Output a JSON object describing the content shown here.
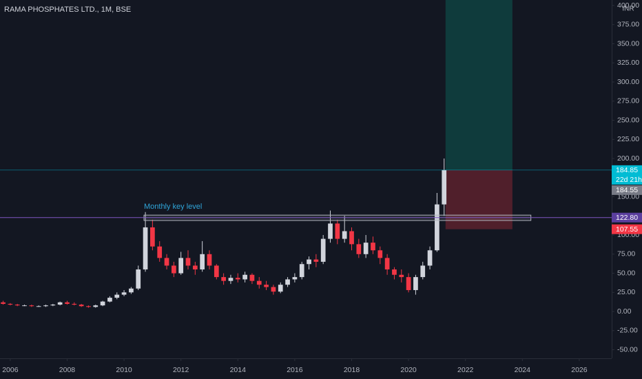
{
  "chart_data": {
    "type": "candlestick",
    "title": "RAMA PHOSPHATES LTD., 1M, BSE",
    "currency": "INR",
    "up_color": "#d1d4dc",
    "down_color": "#f23645",
    "xlim": [
      2005.64,
      2027.14
    ],
    "xticks": [
      2006,
      2008,
      2010,
      2012,
      2014,
      2016,
      2018,
      2020,
      2022,
      2024,
      2026
    ],
    "ylim": [
      -61.2,
      407.2
    ],
    "yticks": [
      {
        "value": -50,
        "label": "-50.00"
      },
      {
        "value": -25,
        "label": "-25.00"
      },
      {
        "value": 0,
        "label": "0.00"
      },
      {
        "value": 25,
        "label": "25.00"
      },
      {
        "value": 50,
        "label": "50.00"
      },
      {
        "value": 75,
        "label": "75.00"
      },
      {
        "value": 100,
        "label": "100.00"
      },
      {
        "value": 150,
        "label": "150.00"
      },
      {
        "value": 200,
        "label": "200.00"
      },
      {
        "value": 225,
        "label": "225.00"
      },
      {
        "value": 250,
        "label": "250.00"
      },
      {
        "value": 275,
        "label": "275.00"
      },
      {
        "value": 300,
        "label": "300.00"
      },
      {
        "value": 325,
        "label": "325.00"
      },
      {
        "value": 350,
        "label": "350.00"
      },
      {
        "value": 375,
        "label": "375.00"
      },
      {
        "value": 400,
        "label": "400.00"
      }
    ],
    "grid": false,
    "x": [
      2005.75,
      2006.0,
      2006.25,
      2006.5,
      2006.75,
      2007.0,
      2007.25,
      2007.5,
      2007.75,
      2008.0,
      2008.25,
      2008.5,
      2008.75,
      2009.0,
      2009.25,
      2009.5,
      2009.75,
      2010.0,
      2010.25,
      2010.5,
      2010.75,
      2011.0,
      2011.25,
      2011.5,
      2011.75,
      2012.0,
      2012.25,
      2012.5,
      2012.75,
      2013.0,
      2013.25,
      2013.5,
      2013.75,
      2014.0,
      2014.25,
      2014.5,
      2014.75,
      2015.0,
      2015.25,
      2015.5,
      2015.75,
      2016.0,
      2016.25,
      2016.5,
      2016.75,
      2017.0,
      2017.25,
      2017.5,
      2017.75,
      2018.0,
      2018.25,
      2018.5,
      2018.75,
      2019.0,
      2019.25,
      2019.5,
      2019.75,
      2020.0,
      2020.25,
      2020.5,
      2020.75,
      2021.0,
      2021.25
    ],
    "open": [
      12,
      10,
      9,
      8,
      8,
      7,
      7,
      8,
      9,
      12,
      10,
      9,
      7,
      6,
      8,
      13,
      18,
      22,
      25,
      30,
      55,
      110,
      85,
      70,
      60,
      50,
      70,
      60,
      55,
      75,
      60,
      45,
      40,
      44,
      42,
      48,
      40,
      35,
      32,
      26,
      35,
      42,
      45,
      62,
      68,
      65,
      95,
      115,
      95,
      105,
      88,
      75,
      90,
      80,
      70,
      55,
      48,
      45,
      28,
      45,
      60,
      80,
      140
    ],
    "high": [
      14,
      11,
      10,
      9,
      9,
      8,
      9,
      10,
      13,
      14,
      12,
      10,
      8,
      9,
      14,
      20,
      25,
      28,
      32,
      60,
      130,
      120,
      92,
      75,
      65,
      78,
      80,
      65,
      92,
      80,
      62,
      50,
      48,
      50,
      52,
      50,
      45,
      40,
      35,
      38,
      45,
      50,
      65,
      72,
      75,
      100,
      132,
      120,
      125,
      110,
      95,
      100,
      98,
      85,
      75,
      58,
      55,
      50,
      48,
      65,
      85,
      155,
      200
    ],
    "low": [
      9,
      8,
      7,
      7,
      6,
      6,
      6,
      7,
      8,
      9,
      8,
      6,
      5,
      5,
      7,
      12,
      16,
      20,
      23,
      28,
      52,
      80,
      65,
      55,
      45,
      48,
      55,
      48,
      52,
      55,
      42,
      35,
      36,
      38,
      38,
      36,
      30,
      28,
      22,
      24,
      32,
      38,
      42,
      55,
      58,
      62,
      90,
      88,
      90,
      80,
      70,
      70,
      75,
      62,
      48,
      42,
      38,
      25,
      22,
      42,
      55,
      78,
      125
    ],
    "close": [
      10,
      9,
      8,
      8,
      7,
      7,
      8,
      9,
      12,
      10,
      9,
      7,
      6,
      8,
      13,
      18,
      22,
      25,
      30,
      55,
      110,
      85,
      70,
      60,
      50,
      70,
      60,
      55,
      75,
      60,
      45,
      40,
      44,
      42,
      48,
      40,
      35,
      32,
      26,
      35,
      42,
      45,
      62,
      68,
      65,
      95,
      115,
      95,
      105,
      88,
      75,
      90,
      80,
      70,
      55,
      48,
      45,
      28,
      45,
      60,
      80,
      140,
      185
    ],
    "key_level": {
      "label": "Monthly key level",
      "range": [
        119,
        126
      ],
      "x": [
        2010.7,
        2024.3
      ]
    },
    "position": {
      "x": [
        2021.3,
        2023.65
      ]
    },
    "countdown": "22d 21h",
    "price_tags": [
      {
        "value": 184.85,
        "label": "184.85",
        "color": "#00bcd4"
      },
      {
        "value": 184.55,
        "label": "184.55",
        "color": "#787b86"
      },
      {
        "value": 122.8,
        "label": "122.80",
        "color": "#5b3f9e"
      },
      {
        "value": 107.55,
        "label": "107.55",
        "color": "#f23645"
      }
    ]
  }
}
